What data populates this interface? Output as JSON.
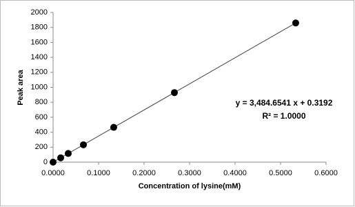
{
  "chart_data": {
    "type": "scatter",
    "x_label": "Concentration of lysine(mM)",
    "y_label": "Peak area",
    "annotations": [
      "y = 3,484.6541 x + 0.3192",
      "R² = 1.0000"
    ],
    "x": [
      0,
      0.0167,
      0.0333,
      0.0667,
      0.1333,
      0.2667,
      0.5333
    ],
    "values": [
      0,
      58,
      116,
      232,
      465,
      929,
      1859
    ],
    "color": "#000000",
    "trendline_color": "#404040",
    "xlim": [
      0,
      0.6
    ],
    "xticks": [
      {
        "value": 0,
        "label": "0.0000"
      },
      {
        "value": 0.1,
        "label": "0.1000"
      },
      {
        "value": 0.2,
        "label": "0.2000"
      },
      {
        "value": 0.3,
        "label": "0.3000"
      },
      {
        "value": 0.4,
        "label": "0.4000"
      },
      {
        "value": 0.5,
        "label": "0.5000"
      },
      {
        "value": 0.6,
        "label": "0.6000"
      }
    ],
    "ylim": [
      0,
      2000
    ],
    "yticks": [
      0,
      200,
      400,
      600,
      800,
      1000,
      1200,
      1400,
      1600,
      1800,
      2000
    ],
    "grid": false
  }
}
